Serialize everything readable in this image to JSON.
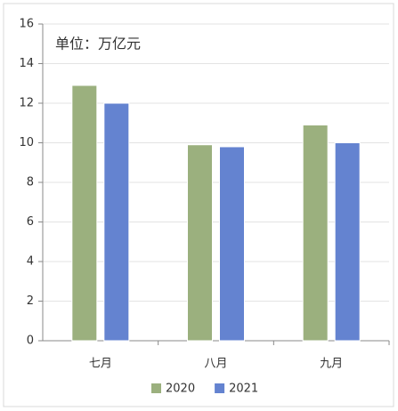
{
  "chart_data": {
    "type": "bar",
    "annotation": "单位：万亿元",
    "categories": [
      "七月",
      "八月",
      "九月"
    ],
    "series": [
      {
        "name": "2020",
        "color": "#9bb07e",
        "values": [
          12.9,
          9.9,
          10.9
        ]
      },
      {
        "name": "2021",
        "color": "#6483d0",
        "values": [
          12.0,
          9.8,
          10.0
        ]
      }
    ],
    "ylim": [
      0,
      16
    ],
    "yticks": [
      0,
      2,
      4,
      6,
      8,
      10,
      12,
      14,
      16
    ],
    "grid": true
  }
}
